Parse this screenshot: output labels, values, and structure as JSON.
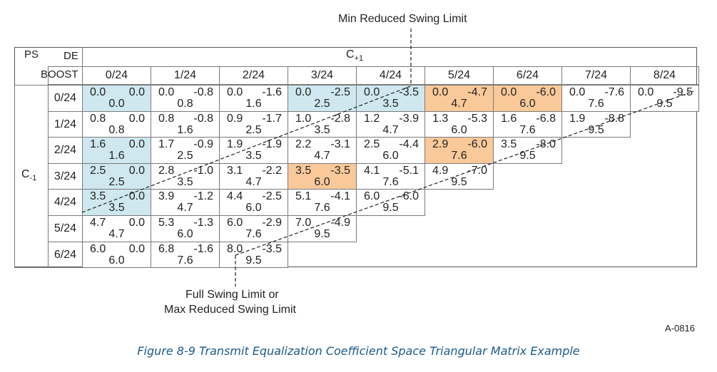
{
  "labels": {
    "min_reduced": "Min Reduced Swing Limit",
    "full_swing_1": "Full Swing Limit or",
    "full_swing_2": "Max Reduced Swing Limit",
    "ps": "PS",
    "de": "DE",
    "boost": "BOOST",
    "c_plus": "C",
    "c_plus_sub": "+1",
    "c_minus": "C",
    "c_minus_sub": "-1",
    "figure_id": "A-0816",
    "caption": "Figure  8-9  Transmit Equalization Coefficient Space Triangular Matrix Example"
  },
  "colors": {
    "blue": "#cfe8ef",
    "orange": "#f9c99a",
    "line": "#222222",
    "caption": "#1a5a8c"
  },
  "columns": [
    "0/24",
    "1/24",
    "2/24",
    "3/24",
    "4/24",
    "5/24",
    "6/24",
    "7/24",
    "8/24"
  ],
  "rows": [
    {
      "label": "0/24",
      "cells": [
        {
          "a": "0.0",
          "b": "0.0",
          "c": "0.0",
          "fill": "blue"
        },
        {
          "a": "0.0",
          "b": "-0.8",
          "c": "0.8",
          "fill": ""
        },
        {
          "a": "0.0",
          "b": "-1.6",
          "c": "1.6",
          "fill": ""
        },
        {
          "a": "0.0",
          "b": "-2.5",
          "c": "2.5",
          "fill": "blue"
        },
        {
          "a": "0.0",
          "b": "-3.5",
          "c": "3.5",
          "fill": "blue"
        },
        {
          "a": "0.0",
          "b": "-4.7",
          "c": "4.7",
          "fill": "orange"
        },
        {
          "a": "0.0",
          "b": "-6.0",
          "c": "6.0",
          "fill": "orange"
        },
        {
          "a": "0.0",
          "b": "-7.6",
          "c": "7.6",
          "fill": ""
        },
        {
          "a": "0.0",
          "b": "-9.5",
          "c": "9.5",
          "fill": ""
        }
      ]
    },
    {
      "label": "1/24",
      "cells": [
        {
          "a": "0.8",
          "b": "0.0",
          "c": "0.8",
          "fill": ""
        },
        {
          "a": "0.8",
          "b": "-0.8",
          "c": "1.6",
          "fill": ""
        },
        {
          "a": "0.9",
          "b": "-1.7",
          "c": "2.5",
          "fill": ""
        },
        {
          "a": "1.0",
          "b": "-2.8",
          "c": "3.5",
          "fill": ""
        },
        {
          "a": "1.2",
          "b": "-3.9",
          "c": "4.7",
          "fill": ""
        },
        {
          "a": "1.3",
          "b": "-5.3",
          "c": "6.0",
          "fill": ""
        },
        {
          "a": "1.6",
          "b": "-6.8",
          "c": "7.6",
          "fill": ""
        },
        {
          "a": "1.9",
          "b": "-8.8",
          "c": "9.5",
          "fill": ""
        }
      ]
    },
    {
      "label": "2/24",
      "cells": [
        {
          "a": "1.6",
          "b": "0.0",
          "c": "1.6",
          "fill": "blue"
        },
        {
          "a": "1.7",
          "b": "-0.9",
          "c": "2.5",
          "fill": ""
        },
        {
          "a": "1.9",
          "b": "-1.9",
          "c": "3.5",
          "fill": ""
        },
        {
          "a": "2.2",
          "b": "-3.1",
          "c": "4.7",
          "fill": ""
        },
        {
          "a": "2.5",
          "b": "-4.4",
          "c": "6.0",
          "fill": ""
        },
        {
          "a": "2.9",
          "b": "-6.0",
          "c": "7.6",
          "fill": "orange"
        },
        {
          "a": "3.5",
          "b": "-8.0",
          "c": "9.5",
          "fill": ""
        }
      ]
    },
    {
      "label": "3/24",
      "cells": [
        {
          "a": "2.5",
          "b": "0.0",
          "c": "2.5",
          "fill": "blue"
        },
        {
          "a": "2.8",
          "b": "-1.0",
          "c": "3.5",
          "fill": ""
        },
        {
          "a": "3.1",
          "b": "-2.2",
          "c": "4.7",
          "fill": ""
        },
        {
          "a": "3.5",
          "b": "-3.5",
          "c": "6.0",
          "fill": "orange"
        },
        {
          "a": "4.1",
          "b": "-5.1",
          "c": "7.6",
          "fill": ""
        },
        {
          "a": "4.9",
          "b": "-7.0",
          "c": "9.5",
          "fill": ""
        }
      ]
    },
    {
      "label": "4/24",
      "cells": [
        {
          "a": "3.5",
          "b": "0.0",
          "c": "3.5",
          "fill": "blue"
        },
        {
          "a": "3.9",
          "b": "-1.2",
          "c": "4.7",
          "fill": ""
        },
        {
          "a": "4.4",
          "b": "-2.5",
          "c": "6.0",
          "fill": ""
        },
        {
          "a": "5.1",
          "b": "-4.1",
          "c": "7.6",
          "fill": ""
        },
        {
          "a": "6.0",
          "b": "-6.0",
          "c": "9.5",
          "fill": ""
        }
      ]
    },
    {
      "label": "5/24",
      "cells": [
        {
          "a": "4.7",
          "b": "0.0",
          "c": "4.7",
          "fill": ""
        },
        {
          "a": "5.3",
          "b": "-1.3",
          "c": "6.0",
          "fill": ""
        },
        {
          "a": "6.0",
          "b": "-2.9",
          "c": "7.6",
          "fill": ""
        },
        {
          "a": "7.0",
          "b": "-4.9",
          "c": "9.5",
          "fill": ""
        }
      ]
    },
    {
      "label": "6/24",
      "cells": [
        {
          "a": "6.0",
          "b": "0.0",
          "c": "6.0",
          "fill": ""
        },
        {
          "a": "6.8",
          "b": "-1.6",
          "c": "7.6",
          "fill": ""
        },
        {
          "a": "8.0",
          "b": "-3.5",
          "c": "9.5",
          "fill": ""
        }
      ]
    }
  ]
}
